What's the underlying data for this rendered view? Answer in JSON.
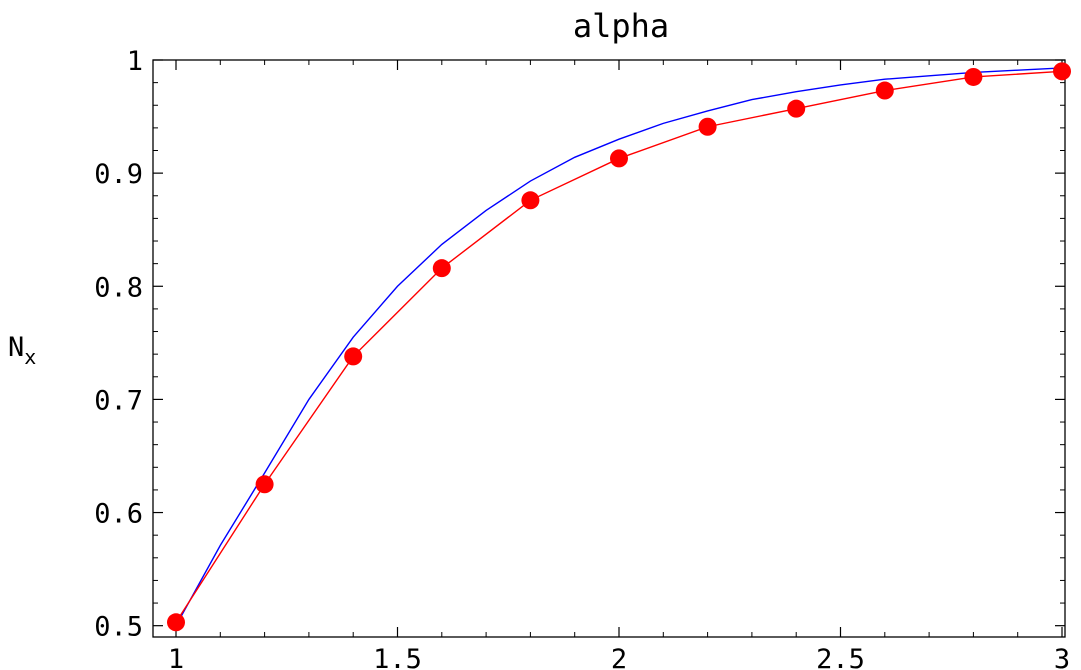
{
  "chart_data": {
    "type": "line",
    "title": "alpha",
    "xlabel": "",
    "ylabel": "N",
    "ylabel_subscript": "x",
    "xlim": [
      1,
      3
    ],
    "ylim": [
      0.49,
      1.0
    ],
    "x_ticks": [
      1,
      1.5,
      2,
      2.5,
      3
    ],
    "x_tick_labels": [
      "1",
      "1.5",
      "2",
      "2.5",
      "3"
    ],
    "y_ticks": [
      0.5,
      0.6,
      0.7,
      0.8,
      0.9,
      1.0
    ],
    "y_tick_labels": [
      "0.5",
      "0.6",
      "0.7",
      "0.8",
      "0.9",
      "1"
    ],
    "grid": false,
    "series": [
      {
        "style": "line-with-markers",
        "color": "#ff0000",
        "x": [
          1.0,
          1.2,
          1.4,
          1.6,
          1.8,
          2.0,
          2.2,
          2.4,
          2.6,
          2.8,
          3.0
        ],
        "values": [
          0.503,
          0.625,
          0.738,
          0.816,
          0.876,
          0.913,
          0.941,
          0.957,
          0.973,
          0.985,
          0.99
        ]
      },
      {
        "style": "line",
        "color": "#0000ff",
        "x": [
          1.0,
          1.1,
          1.2,
          1.3,
          1.4,
          1.5,
          1.6,
          1.7,
          1.8,
          1.9,
          2.0,
          2.1,
          2.2,
          2.3,
          2.4,
          2.5,
          2.6,
          2.7,
          2.8,
          2.9,
          3.0
        ],
        "values": [
          0.5,
          0.571,
          0.635,
          0.7,
          0.755,
          0.8,
          0.837,
          0.867,
          0.893,
          0.914,
          0.93,
          0.944,
          0.955,
          0.965,
          0.972,
          0.978,
          0.983,
          0.986,
          0.989,
          0.991,
          0.993
        ]
      }
    ]
  }
}
